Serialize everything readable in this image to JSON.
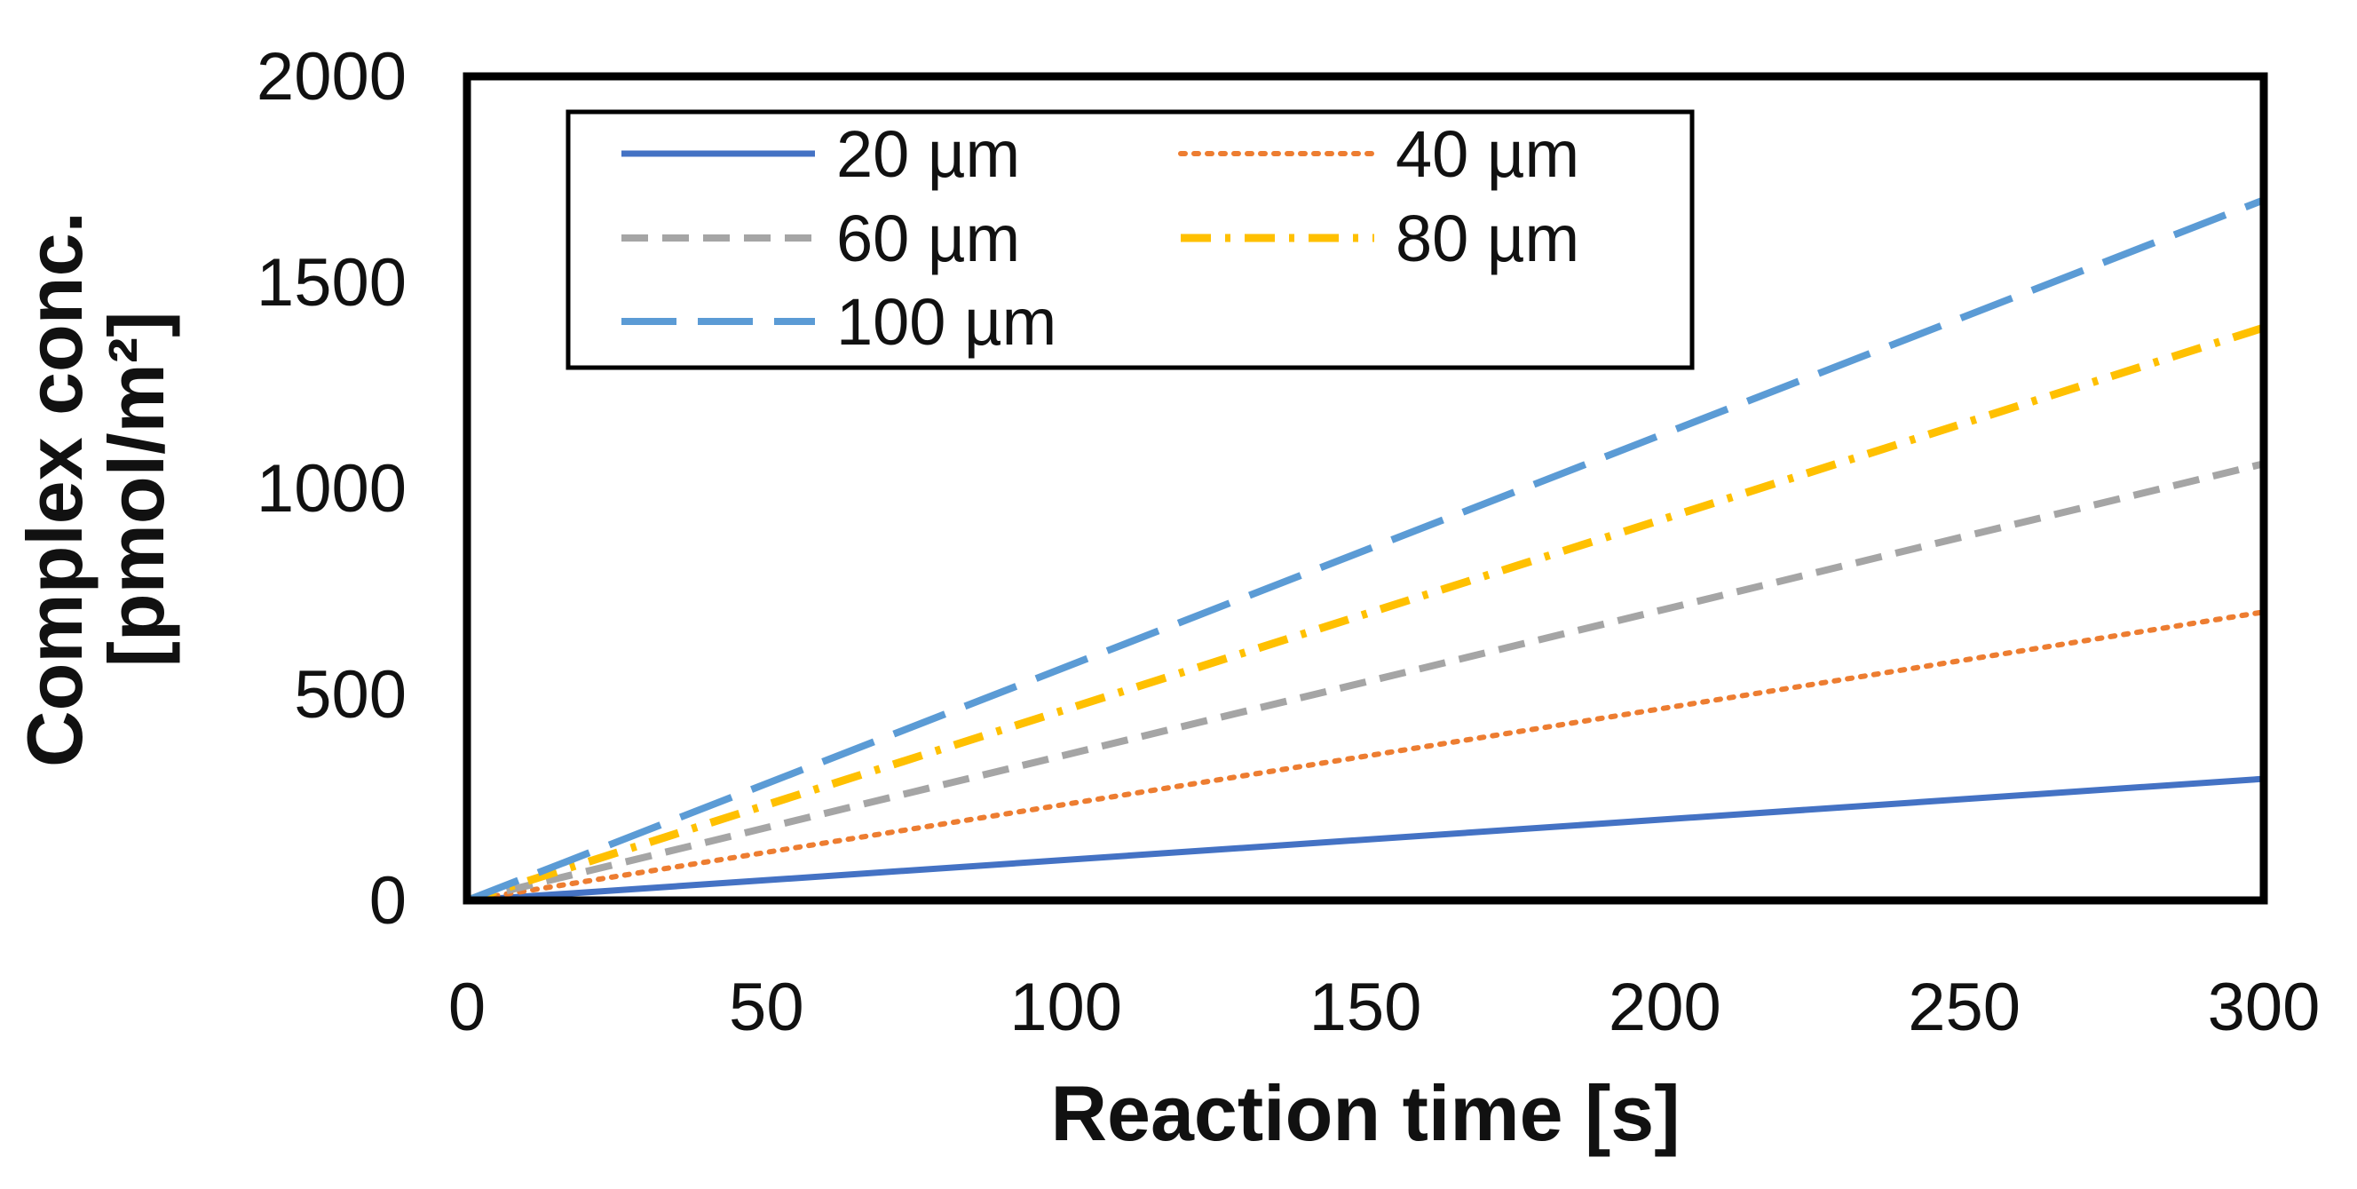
{
  "chart_data": {
    "type": "line",
    "title": "",
    "xlabel": "Reaction time [s]",
    "ylabel_line1": "Complex conc.",
    "ylabel_line2": "[pmol/m²]",
    "xlim": [
      0,
      300
    ],
    "ylim": [
      0,
      2000
    ],
    "xticks": [
      0,
      50,
      100,
      150,
      200,
      250,
      300
    ],
    "yticks": [
      0,
      500,
      1000,
      1500,
      2000
    ],
    "grid": false,
    "legend_position": "top-left",
    "x": [
      0,
      300
    ],
    "series": [
      {
        "name": "20 µm",
        "values": [
          0,
          295
        ],
        "color": "#4472C4",
        "dash": "solid"
      },
      {
        "name": "40 µm",
        "values": [
          0,
          700
        ],
        "color": "#ED7D31",
        "dash": "dotted"
      },
      {
        "name": "60 µm",
        "values": [
          0,
          1060
        ],
        "color": "#A5A5A5",
        "dash": "dashed"
      },
      {
        "name": "80 µm",
        "values": [
          0,
          1390
        ],
        "color": "#FFC000",
        "dash": "dash-dot"
      },
      {
        "name": "100 µm",
        "values": [
          0,
          1700
        ],
        "color": "#5B9BD5",
        "dash": "long-dash"
      }
    ]
  }
}
